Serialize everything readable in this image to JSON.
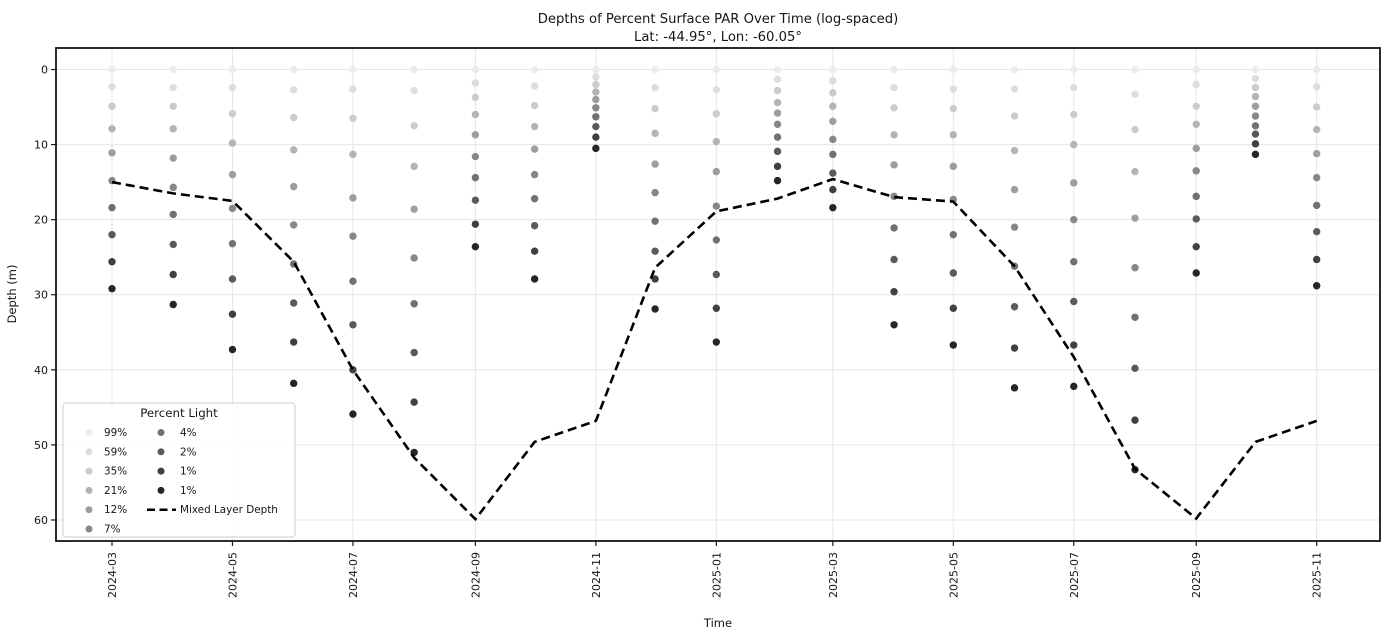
{
  "chart_data": {
    "type": "scatter",
    "title": "Depths of Percent Surface PAR Over Time (log-spaced)",
    "subtitle": "Lat: -44.95°, Lon: -60.05°",
    "xlabel": "Time",
    "ylabel": "Depth (m)",
    "grid": true,
    "axis_ranges": {
      "depth_m": [
        0,
        60
      ],
      "time": [
        "2024-03",
        "2025-11"
      ]
    },
    "y_ticks": [
      0,
      10,
      20,
      30,
      40,
      50,
      60
    ],
    "x_ticks": [
      "2024-03",
      "2024-05",
      "2024-07",
      "2024-09",
      "2024-11",
      "2025-01",
      "2025-03",
      "2025-05",
      "2025-07",
      "2025-09",
      "2025-11"
    ],
    "legend": {
      "title": "Percent Light",
      "mld_label": "Mixed Layer Depth"
    },
    "percent_levels": [
      "99%",
      "59%",
      "35%",
      "21%",
      "12%",
      "7%",
      "4%",
      "2%",
      "1%",
      "1%"
    ],
    "level_colors": [
      "#ececec",
      "#dddddd",
      "#cbcbcb",
      "#b4b4b4",
      "#9d9d9d",
      "#878787",
      "#717171",
      "#5a5a5a",
      "#404040",
      "#262626"
    ],
    "mld_line_color": "#000000",
    "columns": [
      {
        "month": "2024-03",
        "par_depths": [
          0,
          2.3,
          4.9,
          7.9,
          11.1,
          14.8,
          18.4,
          22.0,
          25.6,
          29.2
        ],
        "mld": 15.0
      },
      {
        "month": "2024-04",
        "par_depths": [
          0,
          2.4,
          4.9,
          7.9,
          11.8,
          15.7,
          19.3,
          23.3,
          27.3,
          31.3
        ],
        "mld": 16.5
      },
      {
        "month": "2024-05",
        "par_depths": [
          0,
          2.4,
          5.9,
          9.8,
          14.0,
          18.5,
          23.2,
          27.9,
          32.6,
          37.3
        ],
        "mld": 17.5
      },
      {
        "month": "2024-06",
        "par_depths": [
          0,
          2.7,
          6.4,
          10.7,
          15.6,
          20.7,
          25.9,
          31.1,
          36.3,
          41.8
        ],
        "mld": 25.6
      },
      {
        "month": "2024-07",
        "par_depths": [
          0,
          2.6,
          6.5,
          11.3,
          17.1,
          22.2,
          28.2,
          34.0,
          40.0,
          45.9
        ],
        "mld": 40.0
      },
      {
        "month": "2024-08",
        "par_depths": [
          0,
          2.8,
          7.5,
          12.9,
          18.6,
          25.1,
          31.2,
          37.7,
          44.3,
          51.0
        ],
        "mld": 51.7
      },
      {
        "month": "2024-09",
        "par_depths": [
          0,
          1.8,
          3.7,
          6.0,
          8.7,
          11.6,
          14.4,
          17.4,
          20.6,
          23.6
        ],
        "mld": 59.9
      },
      {
        "month": "2024-10",
        "par_depths": [
          0,
          2.2,
          4.8,
          7.6,
          10.6,
          14.0,
          17.2,
          20.8,
          24.2,
          27.9
        ],
        "mld": 49.6
      },
      {
        "month": "2024-11",
        "par_depths": [
          0,
          1.0,
          2.0,
          3.0,
          4.0,
          5.1,
          6.3,
          7.6,
          9.0,
          10.5
        ],
        "mld": 46.8
      },
      {
        "month": "2024-12",
        "par_depths": [
          0,
          2.4,
          5.2,
          8.5,
          12.6,
          16.4,
          20.2,
          24.2,
          27.9,
          31.9
        ],
        "mld": 26.4
      },
      {
        "month": "2025-01",
        "par_depths": [
          0,
          2.7,
          5.9,
          9.6,
          13.6,
          18.2,
          22.7,
          27.3,
          31.8,
          36.3
        ],
        "mld": 18.9
      },
      {
        "month": "2025-02",
        "par_depths": [
          0,
          1.3,
          2.8,
          4.4,
          5.8,
          7.3,
          9.0,
          10.9,
          12.9,
          14.8
        ],
        "mld": 17.2
      },
      {
        "month": "2025-03",
        "par_depths": [
          0,
          1.5,
          3.1,
          4.9,
          6.9,
          9.3,
          11.3,
          13.8,
          16.0,
          18.4
        ],
        "mld": 14.6
      },
      {
        "month": "2025-04",
        "par_depths": [
          0,
          2.4,
          5.1,
          8.7,
          12.7,
          16.9,
          21.1,
          25.3,
          29.6,
          34.0
        ],
        "mld": 17.0
      },
      {
        "month": "2025-05",
        "par_depths": [
          0,
          2.6,
          5.2,
          8.7,
          12.9,
          17.3,
          22.0,
          27.1,
          31.8,
          36.7
        ],
        "mld": 17.6
      },
      {
        "month": "2025-06",
        "par_depths": [
          0,
          2.6,
          6.2,
          10.8,
          16.0,
          21.0,
          26.2,
          31.6,
          37.1,
          42.4
        ],
        "mld": 26.2
      },
      {
        "month": "2025-07",
        "par_depths": [
          0,
          2.4,
          6.0,
          10.0,
          15.1,
          20.0,
          25.6,
          30.9,
          36.7,
          42.2
        ],
        "mld": 38.3
      },
      {
        "month": "2025-08",
        "par_depths": [
          0,
          3.3,
          8.0,
          13.6,
          19.8,
          26.4,
          33.0,
          39.8,
          46.7,
          53.3
        ],
        "mld": 53.2
      },
      {
        "month": "2025-09",
        "par_depths": [
          0,
          2.0,
          4.9,
          7.3,
          10.5,
          13.5,
          16.9,
          19.9,
          23.6,
          27.1
        ],
        "mld": 59.8
      },
      {
        "month": "2025-10",
        "par_depths": [
          0,
          1.2,
          2.4,
          3.6,
          4.9,
          6.2,
          7.5,
          8.6,
          9.9,
          11.3
        ],
        "mld": 49.6
      },
      {
        "month": "2025-11",
        "par_depths": [
          0,
          2.3,
          5.0,
          8.0,
          11.2,
          14.4,
          18.1,
          21.6,
          25.3,
          28.8
        ],
        "mld": 46.8
      }
    ]
  }
}
